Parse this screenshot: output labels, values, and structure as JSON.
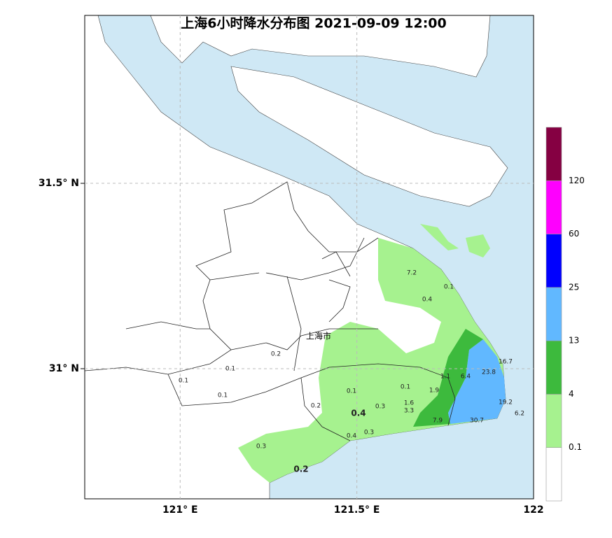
{
  "title": "上海6小时降水分布图 2021-09-09 12:00",
  "xlim": [
    120.73,
    122.0
  ],
  "ylim": [
    30.649,
    31.953
  ],
  "lon_ticks": [
    {
      "value": 121,
      "label": "121° E"
    },
    {
      "value": 121.5,
      "label": "121.5° E"
    },
    {
      "value": 122,
      "label": "122"
    }
  ],
  "lat_ticks": [
    {
      "value": 31,
      "label": "31° N"
    },
    {
      "value": 31.5,
      "label": "31.5° N"
    }
  ],
  "city": "上海市",
  "stations": [
    7.2,
    0.1,
    0.4,
    0.2,
    0.1,
    0.1,
    0.1,
    0.1,
    0.1,
    1.1,
    6.4,
    23.8,
    16.7,
    1.9,
    1.6,
    3.3,
    0.3,
    0.4,
    0.2,
    19.2,
    6.2,
    7.9,
    30.7,
    0.4,
    0.3,
    0.3,
    0.2
  ],
  "legend": {
    "levels": [
      0.1,
      4,
      13,
      25,
      60,
      120
    ],
    "colors": [
      "#ffffff",
      "#a6f28f",
      "#3dba3d",
      "#61b8ff",
      "#0000fe",
      "#fe00fe",
      "#850042"
    ]
  }
}
